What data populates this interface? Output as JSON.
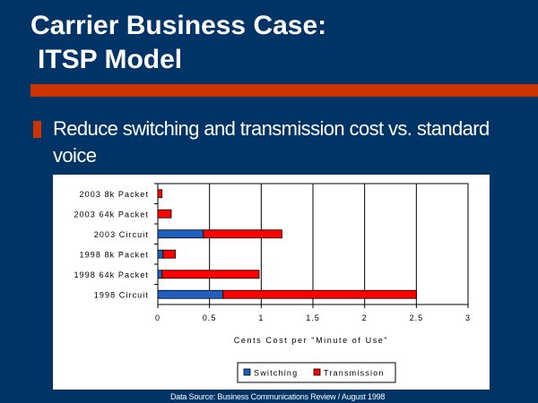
{
  "slide": {
    "title_line1": "Carrier Business Case:",
    "title_line2": "ITSP Model",
    "bullet": "Reduce switching and transmission cost vs. standard voice",
    "source": "Data Source: Business Communications Review / August 1998"
  },
  "colors": {
    "background": "#003366",
    "accent": "#cc3300",
    "switching": "#1f5fbf",
    "transmission": "#ff0000"
  },
  "chart_data": {
    "type": "bar",
    "orientation": "horizontal",
    "stacked": true,
    "categories": [
      "2003 8k Packet",
      "2003 64k Packet",
      "2003 Circuit",
      "1998 8k Packet",
      "1998 64k Packet",
      "1998 Circuit"
    ],
    "series": [
      {
        "name": "Switching",
        "values": [
          0.0,
          0.0,
          0.44,
          0.05,
          0.04,
          0.63
        ]
      },
      {
        "name": "Transmission",
        "values": [
          0.04,
          0.13,
          0.76,
          0.12,
          0.94,
          1.87
        ]
      }
    ],
    "xlabel": "Cents Cost per \"Minute of Use\"",
    "xlim": [
      0,
      3
    ],
    "xticks": [
      "0",
      "0.5",
      "1",
      "1.5",
      "2",
      "2.5",
      "3"
    ],
    "grid": "vertical",
    "legend": "bottom"
  }
}
